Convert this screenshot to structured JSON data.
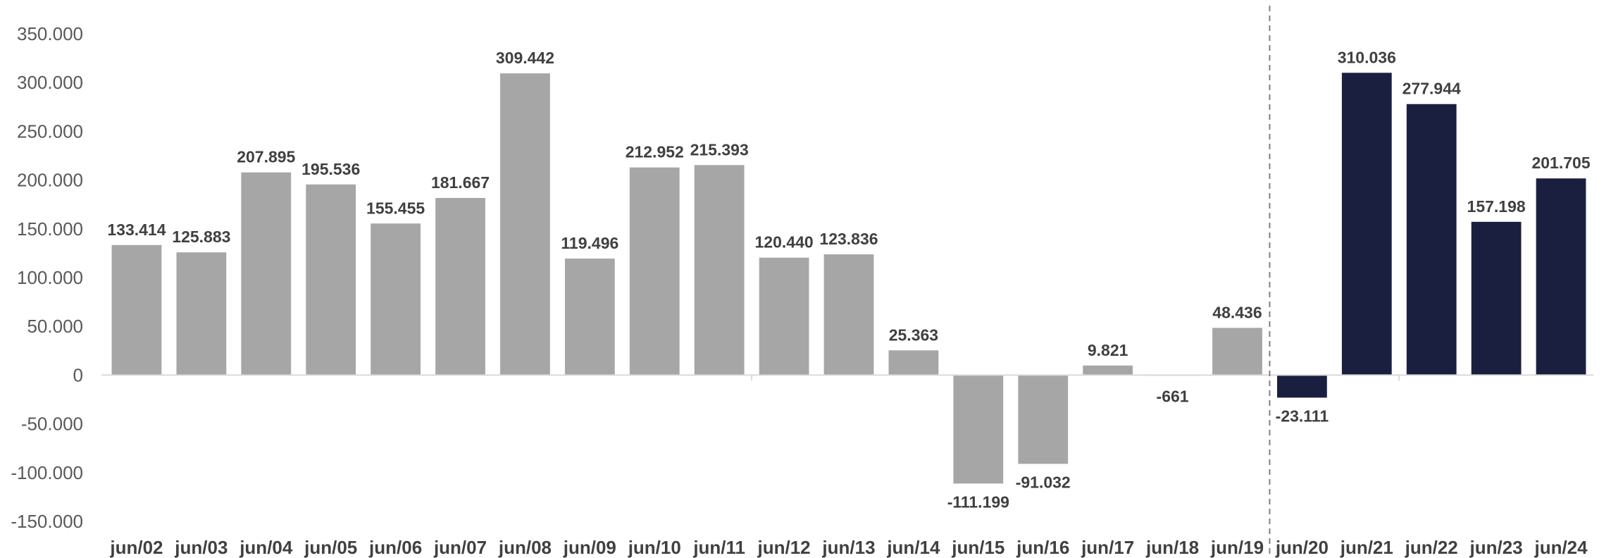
{
  "chart_data": {
    "type": "bar",
    "title": "",
    "xlabel": "",
    "ylabel": "",
    "ylim": [
      -150000,
      350000
    ],
    "yticks": [
      350000,
      300000,
      250000,
      200000,
      150000,
      100000,
      50000,
      0,
      -50000,
      -100000,
      -150000
    ],
    "ytick_labels": [
      "350.000",
      "300.000",
      "250.000",
      "200.000",
      "150.000",
      "100.000",
      "50.000",
      "0",
      "-50.000",
      "-100.000",
      "-150.000"
    ],
    "categories": [
      "jun/02",
      "jun/03",
      "jun/04",
      "jun/05",
      "jun/06",
      "jun/07",
      "jun/08",
      "jun/09",
      "jun/10",
      "jun/11",
      "jun/12",
      "jun/13",
      "jun/14",
      "jun/15",
      "jun/16",
      "jun/17",
      "jun/18",
      "jun/19",
      "jun/20",
      "jun/21",
      "jun/22",
      "jun/23",
      "jun/24"
    ],
    "values": [
      133414,
      125883,
      207895,
      195536,
      155455,
      181667,
      309442,
      119496,
      212952,
      215393,
      120440,
      123836,
      25363,
      -111199,
      -91032,
      9821,
      -661,
      48436,
      -23111,
      310036,
      277944,
      157198,
      201705
    ],
    "data_labels": [
      "133.414",
      "125.883",
      "207.895",
      "195.536",
      "155.455",
      "181.667",
      "309.442",
      "119.496",
      "212.952",
      "215.393",
      "120.440",
      "123.836",
      "25.363",
      "-111.199",
      "-91.032",
      "9.821",
      "-661",
      "48.436",
      "-23.111",
      "310.036",
      "277.944",
      "157.198",
      "201.705"
    ],
    "highlight_from_index": 18,
    "colors": {
      "base_bar": "#a6a6a6",
      "highlight_bar": "#1b1f3f",
      "axis": "#d9d9d9",
      "divider": "#7f7f7f",
      "label": "#404040",
      "tick": "#595959"
    },
    "grid": false,
    "legend": "none",
    "divider_between": [
      "jun/19",
      "jun/20"
    ]
  }
}
